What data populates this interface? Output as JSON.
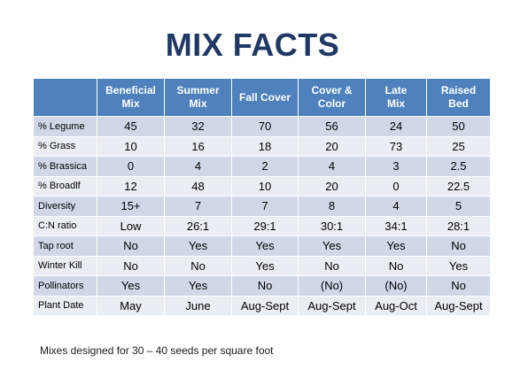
{
  "title": "MIX FACTS",
  "table": {
    "columns": [
      "Beneficial Mix",
      "Summer Mix",
      "Fall Cover",
      "Cover & Color",
      "Late Mix",
      "Raised Bed"
    ],
    "column_lines": [
      [
        "Beneficial",
        "Mix"
      ],
      [
        "Summer",
        "Mix"
      ],
      [
        "Fall Cover"
      ],
      [
        "Cover &",
        "Color"
      ],
      [
        "Late",
        "Mix"
      ],
      [
        "Raised",
        "Bed"
      ]
    ],
    "rows": [
      {
        "label": "% Legume",
        "values": [
          "45",
          "32",
          "70",
          "56",
          "24",
          "50"
        ]
      },
      {
        "label": "% Grass",
        "values": [
          "10",
          "16",
          "18",
          "20",
          "73",
          "25"
        ]
      },
      {
        "label": "% Brassica",
        "values": [
          "0",
          "4",
          "2",
          "4",
          "3",
          "2.5"
        ]
      },
      {
        "label": "% Broadlf",
        "values": [
          "12",
          "48",
          "10",
          "20",
          "0",
          "22.5"
        ]
      },
      {
        "label": "Diversity",
        "values": [
          "15+",
          "7",
          "7",
          "8",
          "4",
          "5"
        ]
      },
      {
        "label": "C:N ratio",
        "values": [
          "Low",
          "26:1",
          "29:1",
          "30:1",
          "34:1",
          "28:1"
        ]
      },
      {
        "label": "Tap root",
        "values": [
          "No",
          "Yes",
          "Yes",
          "Yes",
          "Yes",
          "No"
        ]
      },
      {
        "label": "Winter Kill",
        "values": [
          "No",
          "No",
          "Yes",
          "No",
          "No",
          "Yes"
        ]
      },
      {
        "label": "Pollinators",
        "values": [
          "Yes",
          "Yes",
          "No",
          "(No)",
          "(No)",
          "No"
        ]
      },
      {
        "label": "Plant Date",
        "values": [
          "May",
          "June",
          "Aug-Sept",
          "Aug-Sept",
          "Aug-Oct",
          "Aug-Sept"
        ]
      }
    ]
  },
  "footnote": "Mixes designed for 30 – 40 seeds per square foot",
  "colors": {
    "title": "#1f3864",
    "header_bg": "#4f81bd",
    "row_band_dark": "#d0d8e8",
    "row_band_light": "#e9edf4"
  }
}
